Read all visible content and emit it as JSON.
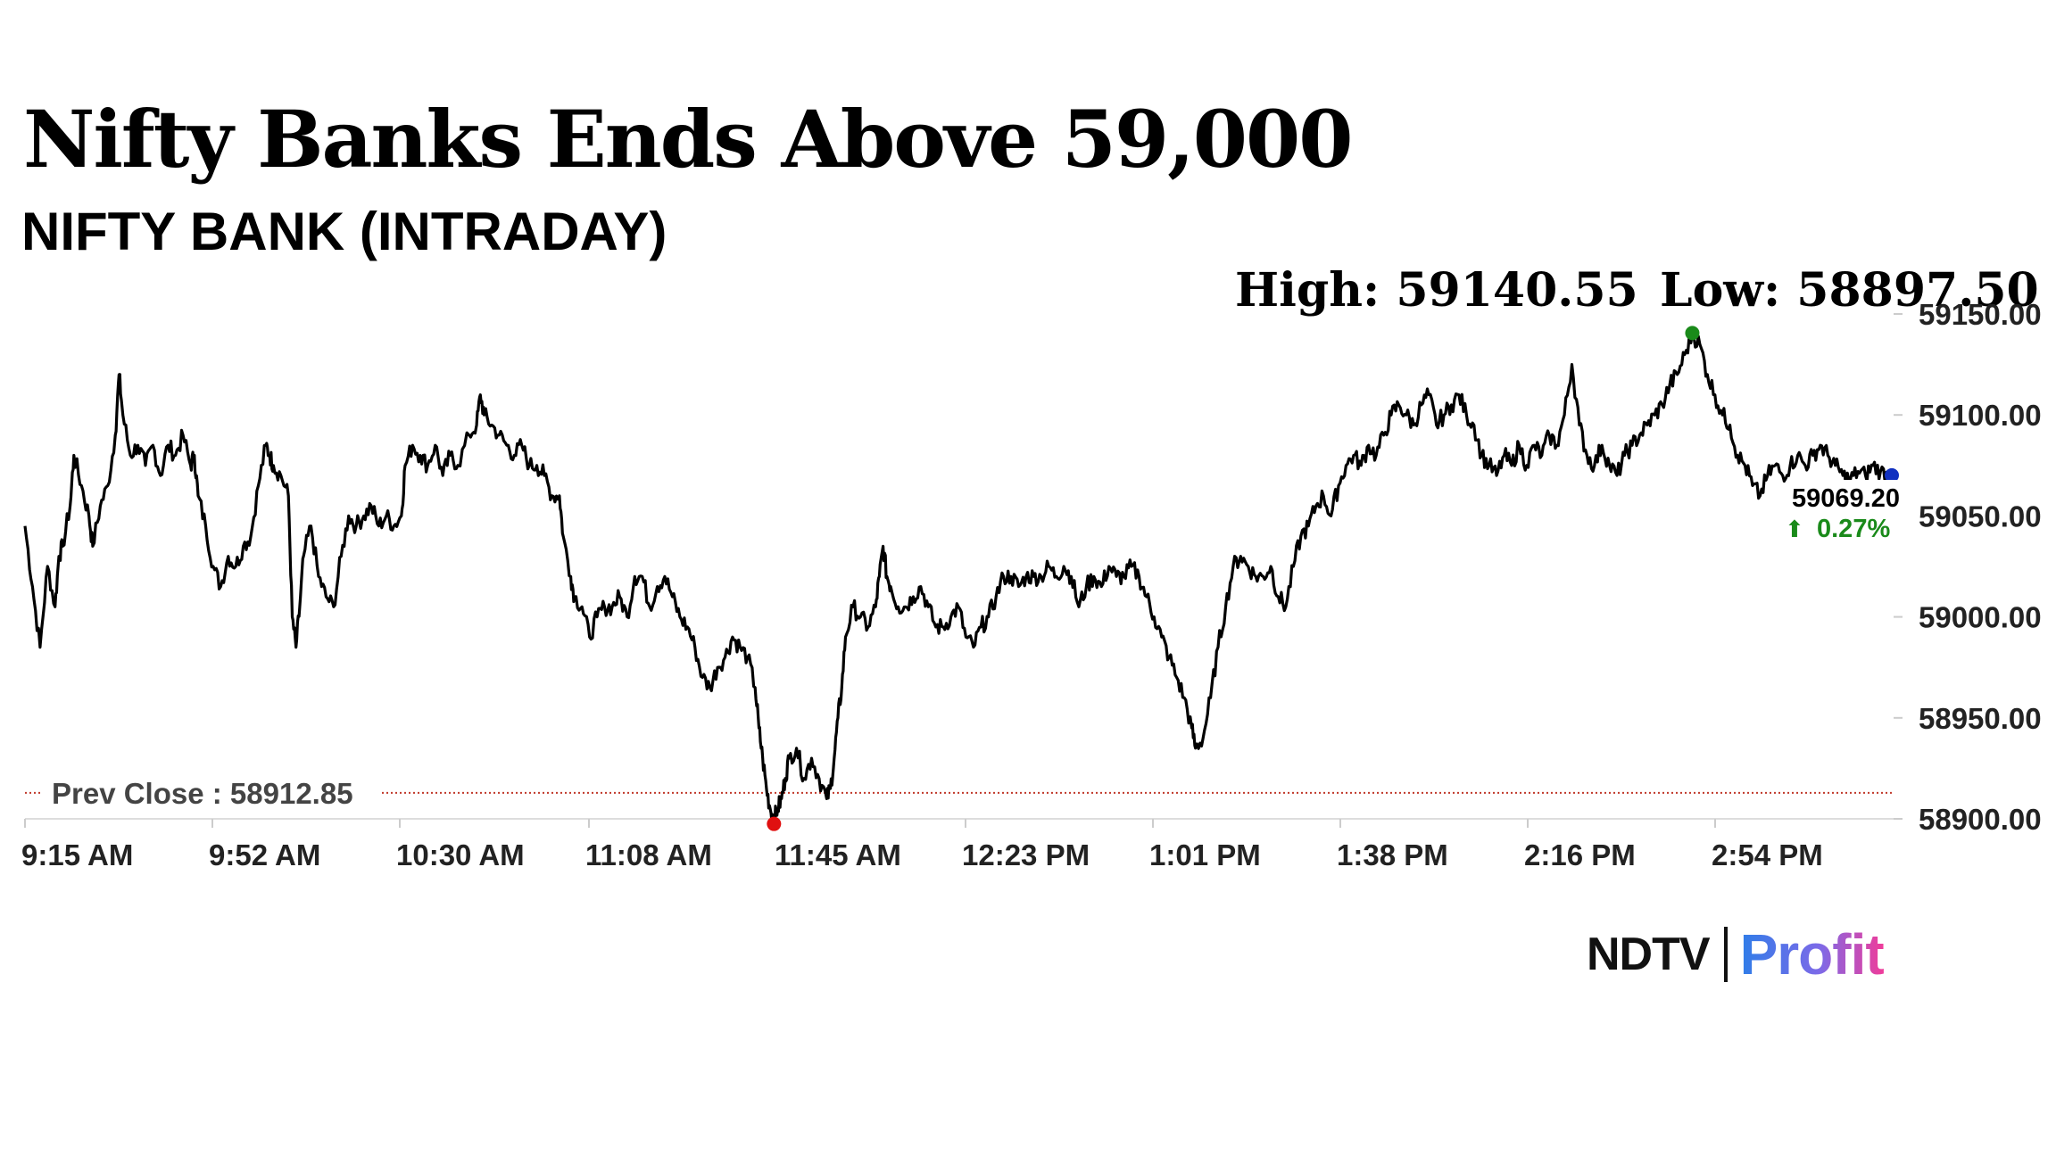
{
  "headline": "Nifty Banks Ends Above 59,000",
  "subheadline": "NIFTY BANK (INTRADAY)",
  "stats": {
    "high_label": "High: 59140.55",
    "low_label": "Low: 58897.50"
  },
  "brand": {
    "ndtv": "NDTV",
    "profit": "Profit"
  },
  "colors": {
    "line": "#000000",
    "high_marker": "#1a8a1a",
    "low_marker": "#e01010",
    "last_marker": "#1030c0",
    "change_text": "#1a8a1a",
    "prev_close_line": "#c0392b",
    "axis_text": "#222222"
  },
  "chart_data": {
    "type": "line",
    "title": "NIFTY BANK (INTRADAY)",
    "xlabel": "",
    "ylabel": "",
    "ylim": [
      58900,
      59150
    ],
    "y_ticks": [
      "59150.00",
      "59100.00",
      "59050.00",
      "59000.00",
      "58950.00",
      "58900.00"
    ],
    "x_ticks": [
      "9:15 AM",
      "9:52 AM",
      "10:30 AM",
      "11:08 AM",
      "11:45 AM",
      "12:23 PM",
      "1:01 PM",
      "1:38 PM",
      "2:16 PM",
      "2:54 PM"
    ],
    "x_range_minutes": [
      0,
      375
    ],
    "prev_close": 58912.85,
    "prev_close_label": "Prev Close : 58912.85",
    "high": 59140.55,
    "low": 58897.5,
    "last": 59069.2,
    "last_label": "59069.20",
    "change_label": "0.27%",
    "change_direction": "up",
    "series": [
      {
        "name": "NIFTY BANK",
        "points": [
          [
            0,
            59045
          ],
          [
            2,
            59015
          ],
          [
            4,
            58985
          ],
          [
            6,
            59025
          ],
          [
            8,
            59005
          ],
          [
            9,
            59030
          ],
          [
            10,
            59035
          ],
          [
            12,
            59055
          ],
          [
            13,
            59080
          ],
          [
            15,
            59065
          ],
          [
            17,
            59050
          ],
          [
            18,
            59035
          ],
          [
            20,
            59055
          ],
          [
            22,
            59065
          ],
          [
            24,
            59090
          ],
          [
            25,
            59120
          ],
          [
            26,
            59100
          ],
          [
            28,
            59080
          ],
          [
            30,
            59085
          ],
          [
            32,
            59075
          ],
          [
            34,
            59085
          ],
          [
            36,
            59070
          ],
          [
            38,
            59085
          ],
          [
            40,
            59080
          ],
          [
            42,
            59090
          ],
          [
            44,
            59075
          ],
          [
            45,
            59080
          ],
          [
            46,
            59060
          ],
          [
            48,
            59045
          ],
          [
            50,
            59025
          ],
          [
            52,
            59015
          ],
          [
            54,
            59030
          ],
          [
            56,
            59025
          ],
          [
            58,
            59035
          ],
          [
            60,
            59040
          ],
          [
            62,
            59065
          ],
          [
            64,
            59085
          ],
          [
            65,
            59080
          ],
          [
            66,
            59075
          ],
          [
            68,
            59070
          ],
          [
            70,
            59060
          ],
          [
            71,
            59000
          ],
          [
            72,
            58985
          ],
          [
            73,
            59005
          ],
          [
            74,
            59030
          ],
          [
            76,
            59045
          ],
          [
            78,
            59020
          ],
          [
            80,
            59010
          ],
          [
            82,
            59005
          ],
          [
            84,
            59030
          ],
          [
            86,
            59050
          ],
          [
            88,
            59045
          ],
          [
            90,
            59050
          ],
          [
            92,
            59055
          ],
          [
            94,
            59045
          ],
          [
            96,
            59050
          ],
          [
            98,
            59045
          ],
          [
            100,
            59050
          ],
          [
            101,
            59075
          ],
          [
            103,
            59085
          ],
          [
            105,
            59080
          ],
          [
            107,
            59075
          ],
          [
            109,
            59085
          ],
          [
            111,
            59070
          ],
          [
            113,
            59080
          ],
          [
            115,
            59075
          ],
          [
            118,
            59090
          ],
          [
            120,
            59095
          ],
          [
            121,
            59110
          ],
          [
            122,
            59100
          ],
          [
            124,
            59095
          ],
          [
            126,
            59090
          ],
          [
            128,
            59085
          ],
          [
            130,
            59080
          ],
          [
            132,
            59085
          ],
          [
            134,
            59075
          ],
          [
            136,
            59075
          ],
          [
            138,
            59070
          ],
          [
            140,
            59060
          ],
          [
            142,
            59060
          ],
          [
            143,
            59040
          ],
          [
            145,
            59020
          ],
          [
            146,
            59010
          ],
          [
            148,
            59005
          ],
          [
            150,
            58990
          ],
          [
            152,
            59000
          ],
          [
            154,
            59005
          ],
          [
            156,
            59005
          ],
          [
            158,
            59010
          ],
          [
            160,
            59000
          ],
          [
            162,
            59020
          ],
          [
            164,
            59020
          ],
          [
            166,
            59005
          ],
          [
            168,
            59015
          ],
          [
            170,
            59020
          ],
          [
            172,
            59010
          ],
          [
            174,
            59000
          ],
          [
            176,
            58995
          ],
          [
            178,
            58985
          ],
          [
            180,
            58970
          ],
          [
            182,
            58965
          ],
          [
            184,
            58975
          ],
          [
            186,
            58980
          ],
          [
            188,
            58990
          ],
          [
            190,
            58985
          ],
          [
            192,
            58980
          ],
          [
            194,
            58965
          ],
          [
            195,
            58945
          ],
          [
            196,
            58930
          ],
          [
            197,
            58915
          ],
          [
            198,
            58905
          ],
          [
            199,
            58900
          ],
          [
            200,
            58905
          ],
          [
            201,
            58910
          ],
          [
            202,
            58920
          ],
          [
            203,
            58930
          ],
          [
            205,
            58935
          ],
          [
            207,
            58920
          ],
          [
            209,
            58930
          ],
          [
            211,
            58920
          ],
          [
            213,
            58910
          ],
          [
            214,
            58915
          ],
          [
            215,
            58930
          ],
          [
            216,
            58950
          ],
          [
            217,
            58965
          ],
          [
            218,
            58990
          ],
          [
            220,
            59005
          ],
          [
            222,
            59000
          ],
          [
            224,
            58995
          ],
          [
            226,
            59005
          ],
          [
            227,
            59020
          ],
          [
            228,
            59035
          ],
          [
            229,
            59020
          ],
          [
            230,
            59015
          ],
          [
            232,
            59005
          ],
          [
            234,
            59005
          ],
          [
            236,
            59010
          ],
          [
            238,
            59015
          ],
          [
            240,
            59005
          ],
          [
            242,
            58995
          ],
          [
            244,
            58995
          ],
          [
            246,
            59000
          ],
          [
            248,
            59005
          ],
          [
            250,
            58990
          ],
          [
            252,
            58985
          ],
          [
            254,
            58995
          ],
          [
            256,
            59000
          ],
          [
            258,
            59010
          ],
          [
            260,
            59020
          ],
          [
            262,
            59020
          ],
          [
            264,
            59015
          ],
          [
            266,
            59020
          ],
          [
            268,
            59020
          ],
          [
            270,
            59020
          ],
          [
            272,
            59025
          ],
          [
            274,
            59020
          ],
          [
            276,
            59025
          ],
          [
            278,
            59020
          ],
          [
            280,
            59005
          ],
          [
            282,
            59015
          ],
          [
            284,
            59020
          ],
          [
            286,
            59015
          ],
          [
            288,
            59025
          ],
          [
            290,
            59020
          ],
          [
            292,
            59020
          ],
          [
            294,
            59025
          ],
          [
            296,
            59020
          ],
          [
            298,
            59010
          ],
          [
            300,
            59000
          ],
          [
            302,
            58990
          ],
          [
            304,
            58980
          ],
          [
            306,
            58970
          ],
          [
            308,
            58960
          ],
          [
            310,
            58945
          ],
          [
            311,
            58935
          ],
          [
            313,
            58940
          ],
          [
            315,
            58960
          ],
          [
            317,
            58985
          ],
          [
            319,
            59005
          ],
          [
            321,
            59025
          ],
          [
            323,
            59030
          ],
          [
            325,
            59025
          ],
          [
            327,
            59020
          ],
          [
            329,
            59020
          ],
          [
            331,
            59025
          ],
          [
            333,
            59010
          ],
          [
            335,
            59005
          ],
          [
            337,
            59025
          ],
          [
            339,
            59040
          ],
          [
            341,
            59045
          ],
          [
            343,
            59055
          ],
          [
            345,
            59060
          ],
          [
            347,
            59050
          ],
          [
            349,
            59065
          ],
          [
            351,
            59075
          ],
          [
            353,
            59080
          ],
          [
            355,
            59075
          ],
          [
            357,
            59085
          ],
          [
            359,
            59080
          ],
          [
            361,
            59090
          ],
          [
            363,
            59100
          ],
          [
            365,
            59105
          ],
          [
            367,
            59100
          ],
          [
            369,
            59095
          ],
          [
            371,
            59105
          ],
          [
            373,
            59110
          ],
          [
            375,
            59095
          ],
          [
            377,
            59100
          ],
          [
            379,
            59105
          ],
          [
            381,
            59110
          ],
          [
            383,
            59100
          ],
          [
            385,
            59095
          ],
          [
            387,
            59080
          ],
          [
            389,
            59075
          ],
          [
            391,
            59070
          ],
          [
            393,
            59080
          ],
          [
            395,
            59075
          ],
          [
            397,
            59085
          ],
          [
            399,
            59075
          ],
          [
            401,
            59085
          ],
          [
            403,
            59080
          ],
          [
            405,
            59090
          ],
          [
            407,
            59085
          ],
          [
            409,
            59100
          ],
          [
            411,
            59125
          ],
          [
            413,
            59095
          ],
          [
            415,
            59080
          ],
          [
            417,
            59075
          ],
          [
            419,
            59085
          ],
          [
            421,
            59075
          ],
          [
            423,
            59070
          ],
          [
            425,
            59080
          ],
          [
            427,
            59085
          ],
          [
            429,
            59090
          ],
          [
            431,
            59095
          ],
          [
            433,
            59100
          ],
          [
            435,
            59105
          ],
          [
            437,
            59115
          ],
          [
            439,
            59120
          ],
          [
            441,
            59130
          ],
          [
            443,
            59140
          ],
          [
            445,
            59135
          ],
          [
            447,
            59120
          ],
          [
            449,
            59110
          ],
          [
            451,
            59100
          ],
          [
            453,
            59095
          ],
          [
            455,
            59080
          ],
          [
            457,
            59075
          ],
          [
            459,
            59065
          ],
          [
            461,
            59060
          ],
          [
            463,
            59070
          ],
          [
            465,
            59075
          ],
          [
            467,
            59070
          ],
          [
            469,
            59075
          ],
          [
            471,
            59080
          ],
          [
            473,
            59075
          ],
          [
            475,
            59080
          ],
          [
            477,
            59085
          ],
          [
            479,
            59080
          ],
          [
            481,
            59075
          ],
          [
            483,
            59070
          ],
          [
            485,
            59068
          ],
          [
            487,
            59072
          ],
          [
            489,
            59070
          ],
          [
            491,
            59075
          ],
          [
            493,
            59072
          ],
          [
            495,
            59070
          ],
          [
            496,
            59069.2
          ]
        ]
      }
    ],
    "x_domain": [
      0,
      496
    ]
  }
}
